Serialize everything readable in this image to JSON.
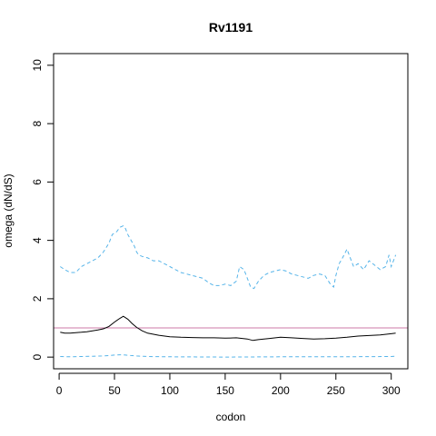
{
  "chart_data": {
    "type": "line",
    "title": "Rv1191",
    "xlabel": "codon",
    "ylabel": "omega (dN/dS)",
    "xlim": [
      -5,
      315
    ],
    "ylim": [
      -0.4,
      10.4
    ],
    "xticks": [
      0,
      50,
      100,
      150,
      200,
      250,
      300
    ],
    "yticks": [
      0,
      2,
      4,
      6,
      8,
      10
    ],
    "xtick_labels": [
      "0",
      "50",
      "100",
      "150",
      "200",
      "250",
      "300"
    ],
    "ytick_labels": [
      "0",
      "2",
      "4",
      "6",
      "8",
      "10"
    ],
    "reference_line": {
      "y": 1,
      "color": "#cc79a7"
    },
    "grid": false,
    "series": [
      {
        "style": "dashed",
        "color": "#56b4e9",
        "x": [
          1,
          5,
          10,
          15,
          20,
          25,
          30,
          35,
          40,
          45,
          48,
          52,
          55,
          58,
          60,
          62,
          65,
          68,
          70,
          72,
          75,
          80,
          85,
          90,
          95,
          100,
          105,
          110,
          115,
          120,
          125,
          130,
          135,
          140,
          145,
          150,
          155,
          160,
          163,
          167,
          170,
          173,
          176,
          180,
          185,
          190,
          195,
          200,
          205,
          210,
          215,
          220,
          225,
          230,
          235,
          240,
          245,
          248,
          250,
          253,
          256,
          260,
          263,
          266,
          270,
          275,
          280,
          285,
          290,
          295,
          298,
          300,
          302,
          304
        ],
        "y": [
          3.1,
          3.0,
          2.9,
          2.9,
          3.1,
          3.2,
          3.3,
          3.4,
          3.6,
          3.9,
          4.2,
          4.3,
          4.45,
          4.5,
          4.4,
          4.2,
          4.0,
          3.8,
          3.6,
          3.5,
          3.45,
          3.4,
          3.3,
          3.3,
          3.2,
          3.1,
          3.0,
          2.9,
          2.85,
          2.8,
          2.75,
          2.7,
          2.55,
          2.45,
          2.45,
          2.5,
          2.45,
          2.6,
          3.1,
          3.0,
          2.7,
          2.4,
          2.35,
          2.6,
          2.8,
          2.9,
          2.95,
          3.0,
          2.95,
          2.85,
          2.8,
          2.75,
          2.7,
          2.8,
          2.85,
          2.8,
          2.5,
          2.4,
          2.8,
          3.2,
          3.4,
          3.7,
          3.4,
          3.1,
          3.2,
          3.0,
          3.3,
          3.15,
          3.0,
          3.1,
          3.5,
          3.1,
          3.3,
          3.5
        ]
      },
      {
        "style": "solid",
        "color": "#000000",
        "x": [
          1,
          5,
          10,
          15,
          20,
          25,
          30,
          35,
          40,
          45,
          50,
          55,
          58,
          62,
          66,
          70,
          75,
          80,
          90,
          100,
          110,
          120,
          130,
          140,
          150,
          160,
          170,
          175,
          180,
          190,
          200,
          210,
          220,
          230,
          240,
          250,
          260,
          270,
          280,
          290,
          300,
          304
        ],
        "y": [
          0.85,
          0.82,
          0.82,
          0.84,
          0.85,
          0.87,
          0.9,
          0.93,
          0.97,
          1.05,
          1.2,
          1.33,
          1.4,
          1.3,
          1.15,
          1.02,
          0.9,
          0.82,
          0.75,
          0.7,
          0.68,
          0.67,
          0.66,
          0.66,
          0.65,
          0.66,
          0.62,
          0.57,
          0.6,
          0.64,
          0.68,
          0.66,
          0.64,
          0.62,
          0.63,
          0.65,
          0.68,
          0.72,
          0.74,
          0.76,
          0.8,
          0.82
        ]
      },
      {
        "style": "dashed",
        "color": "#56b4e9",
        "x": [
          1,
          10,
          20,
          30,
          40,
          50,
          55,
          60,
          70,
          80,
          100,
          150,
          200,
          250,
          300,
          304
        ],
        "y": [
          0.02,
          0.01,
          0.02,
          0.03,
          0.04,
          0.07,
          0.08,
          0.07,
          0.04,
          0.02,
          0.01,
          0.0,
          0.01,
          0.01,
          0.02,
          0.03
        ]
      }
    ]
  }
}
